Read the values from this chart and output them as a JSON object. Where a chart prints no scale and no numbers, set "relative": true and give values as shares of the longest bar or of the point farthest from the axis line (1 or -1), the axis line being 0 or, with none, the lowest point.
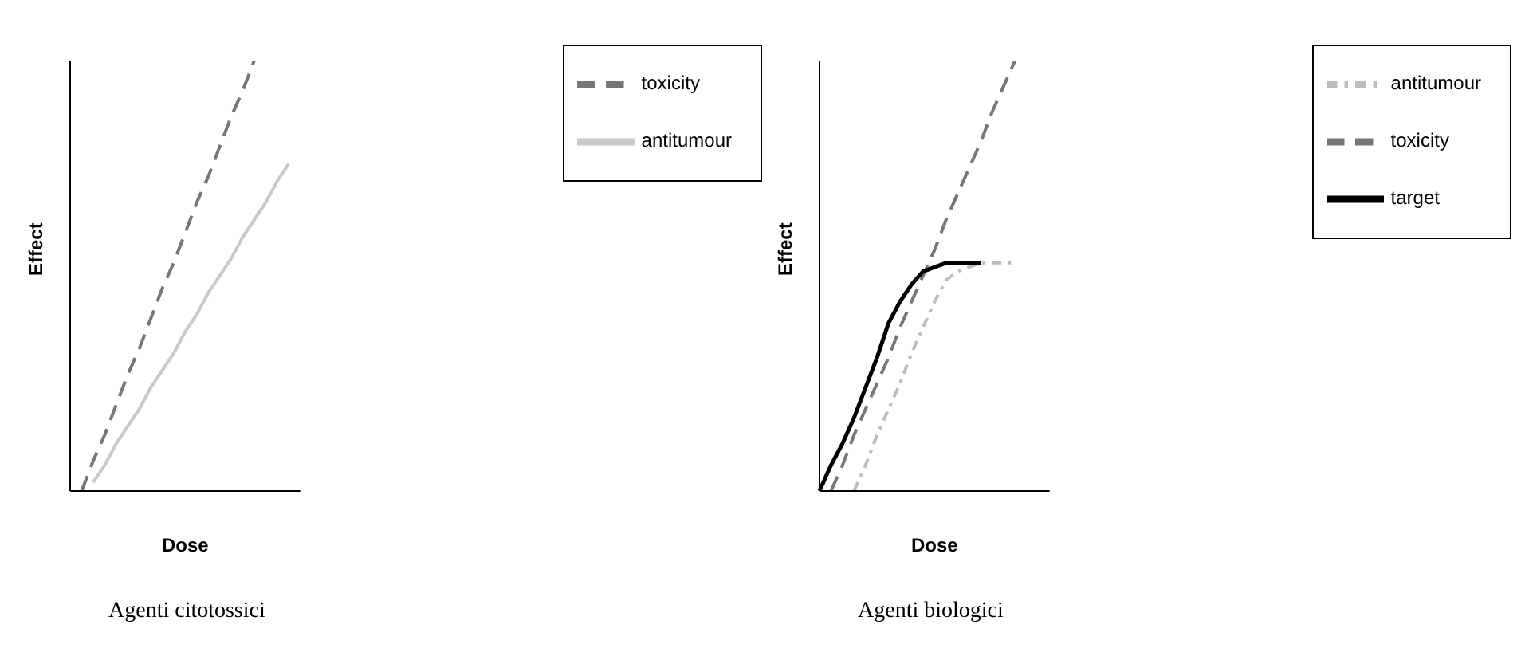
{
  "chart_data": [
    {
      "type": "line",
      "title": "Agenti citotossici",
      "xlabel": "Dose",
      "ylabel": "Effect",
      "relative": true,
      "legend": "top right",
      "marker": "none",
      "categories": [
        null,
        null,
        null,
        null,
        null,
        null,
        null,
        null,
        null,
        null,
        null,
        null,
        null,
        null,
        null,
        null,
        null,
        null,
        null,
        null,
        null
      ],
      "series": [
        {
          "name": "toxicity",
          "color": "#777777",
          "line_style": "dashed",
          "values": [
            null,
            0,
            0.07,
            0.13,
            0.2,
            0.27,
            0.33,
            0.4,
            0.47,
            0.53,
            0.6,
            0.67,
            0.73,
            0.8,
            0.87,
            0.93,
            1,
            null,
            null,
            null,
            null
          ]
        },
        {
          "name": "antitumour",
          "color": "#c8c8c8",
          "line_style": "solid",
          "values": [
            null,
            null,
            0.02,
            0.06,
            0.11,
            0.15,
            0.19,
            0.24,
            0.28,
            0.32,
            0.37,
            0.41,
            0.46,
            0.5,
            0.54,
            0.59,
            0.63,
            0.67,
            0.72,
            0.76,
            null
          ]
        }
      ]
    },
    {
      "type": "line",
      "title": "Agenti biologici",
      "xlabel": "Dose",
      "ylabel": "Effect",
      "relative": true,
      "legend": "top right",
      "marker": "none",
      "categories": [
        null,
        null,
        null,
        null,
        null,
        null,
        null,
        null,
        null,
        null,
        null,
        null,
        null,
        null,
        null,
        null,
        null,
        null,
        null,
        null,
        null
      ],
      "series": [
        {
          "name": "antitumour",
          "color": "#bcbcbc",
          "line_style": "dotted",
          "values": [
            null,
            null,
            null,
            0,
            0.06,
            0.13,
            0.19,
            0.25,
            0.32,
            0.38,
            0.44,
            0.49,
            0.51,
            0.52,
            0.53,
            0.53,
            0.53,
            0.53,
            null,
            null,
            null
          ]
        },
        {
          "name": "toxicity",
          "color": "#777777",
          "line_style": "dashed",
          "values": [
            null,
            0,
            0.06,
            0.13,
            0.19,
            0.25,
            0.31,
            0.38,
            0.44,
            0.5,
            0.56,
            0.63,
            0.69,
            0.75,
            0.81,
            0.88,
            0.94,
            1,
            null,
            null,
            null
          ]
        },
        {
          "name": "target",
          "color": "#000000",
          "line_style": "solid",
          "values": [
            0,
            0.06,
            0.11,
            0.17,
            0.24,
            0.31,
            0.39,
            0.44,
            0.48,
            0.51,
            0.52,
            0.53,
            0.53,
            0.53,
            0.53,
            null,
            null,
            null,
            null,
            null,
            null
          ]
        }
      ]
    }
  ]
}
